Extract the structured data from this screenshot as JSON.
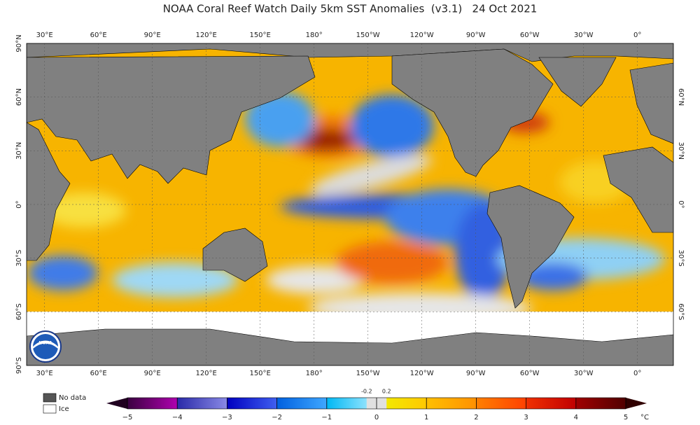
{
  "title": "NOAA Coral Reef Watch Daily 5km SST Anomalies  (v3.1)   24 Oct 2021",
  "longitude_labels": [
    "30°E",
    "60°E",
    "90°E",
    "120°E",
    "150°E",
    "180°",
    "150°W",
    "120°W",
    "90°W",
    "60°W",
    "30°W",
    "0°"
  ],
  "latitude_labels_left": [
    "90°N",
    "60°N",
    "30°N",
    "0°",
    "30°S",
    "60°S",
    "90°S"
  ],
  "latitude_labels_right": [
    "60°N",
    "30°N",
    "0°",
    "30°S",
    "60°S"
  ],
  "legend": {
    "no_data": "No data",
    "ice": "Ice"
  },
  "colorbar": {
    "tick_labels": [
      "−5",
      "−4",
      "−3",
      "−2",
      "−1",
      "0",
      "1",
      "2",
      "3",
      "4",
      "5"
    ],
    "inner_labels": [
      "-0.2",
      "0.2"
    ],
    "unit": "°C"
  }
}
